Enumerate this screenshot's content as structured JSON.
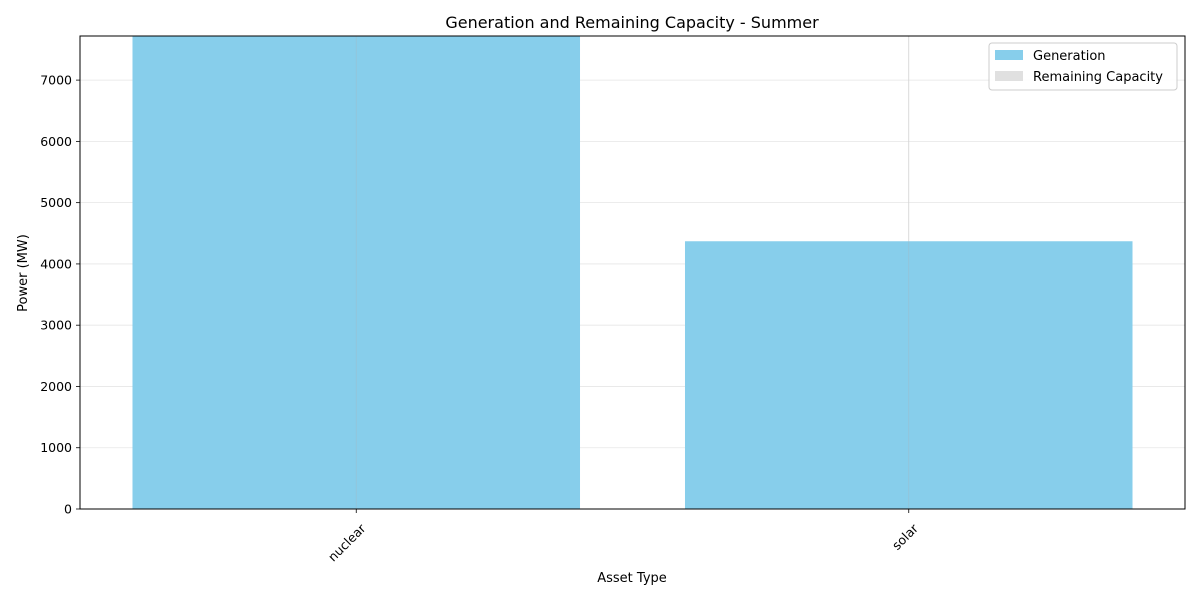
{
  "chart_data": {
    "type": "bar",
    "stacked": true,
    "title": "Generation and Remaining Capacity - Summer",
    "xlabel": "Asset Type",
    "ylabel": "Power (MW)",
    "categories": [
      "nuclear",
      "solar"
    ],
    "series": [
      {
        "name": "Generation",
        "color": "#87ceeb",
        "values": [
          7720,
          4370
        ]
      },
      {
        "name": "Remaining Capacity",
        "color": "#e0e0e0",
        "values": [
          0,
          0
        ]
      }
    ],
    "ylim": [
      0,
      7720
    ],
    "yticks": [
      0,
      1000,
      2000,
      3000,
      4000,
      5000,
      6000,
      7000
    ],
    "grid": true,
    "legend_position": "top-right",
    "xtick_rotation": 45
  }
}
